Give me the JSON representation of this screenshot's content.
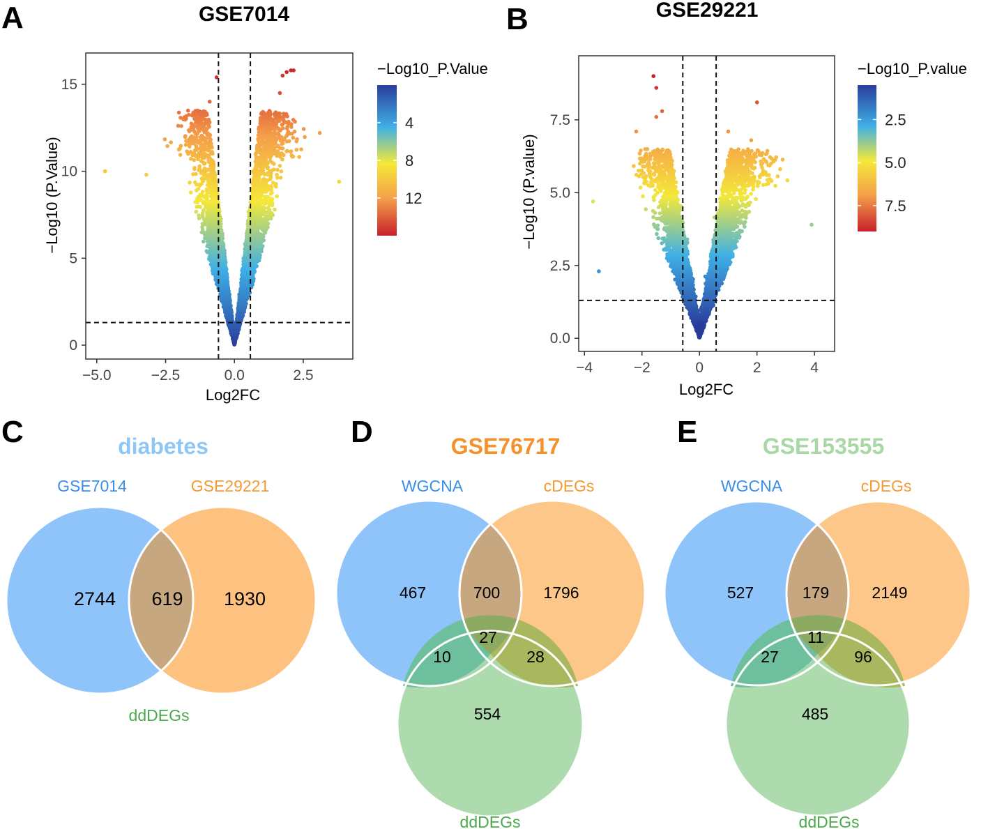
{
  "panels": {
    "a": {
      "letter": "A"
    },
    "b": {
      "letter": "B"
    },
    "c": {
      "letter": "C"
    },
    "d": {
      "letter": "D"
    },
    "e": {
      "letter": "E"
    }
  },
  "colors": {
    "scale_low": "#2b3d9b",
    "scale_mid_blue": "#3fb0e6",
    "scale_yellow": "#f5e838",
    "scale_orange": "#f5a04a",
    "scale_high": "#c8202b",
    "venn_blue": "#8fc4fb",
    "venn_orange": "#fdc27f",
    "venn_green": "#a6d8a6",
    "blue_label": "#3a8fe8",
    "orange_label": "#f59a32",
    "green_label": "#4aaa4a",
    "title_diabetes": "#8ec6f5",
    "title_gse76717": "#f5902a",
    "title_gse153555": "#a8d8a6"
  },
  "chart_data": [
    {
      "panel": "A",
      "type": "scatter",
      "subtype": "volcano",
      "title": "GSE7014",
      "xlabel": "Log2FC",
      "ylabel": "−Log10 (P.Value)",
      "xlim": [
        -5.4,
        4.3
      ],
      "ylim": [
        -0.8,
        16.8
      ],
      "xticks": [
        -5.0,
        -2.5,
        0.0,
        2.5
      ],
      "xtick_labels": [
        "−5.0",
        "−2.5",
        "0.0",
        "2.5"
      ],
      "yticks": [
        0,
        5,
        10,
        15
      ],
      "ytick_labels": [
        "0",
        "5",
        "10",
        "15"
      ],
      "vlines": [
        -0.58,
        0.58
      ],
      "hline": 1.3,
      "legend": {
        "title": "−Log10_P.Value",
        "ticks": [
          4,
          8,
          12
        ],
        "tick_labels": [
          "4",
          "8",
          "12"
        ],
        "range": [
          0,
          16
        ],
        "reversed": true
      },
      "grid": false,
      "highlight_points": [
        {
          "x": -4.7,
          "y": 10.0
        },
        {
          "x": -0.65,
          "y": 15.4
        },
        {
          "x": -0.9,
          "y": 14.0
        },
        {
          "x": 1.75,
          "y": 15.5
        },
        {
          "x": 1.9,
          "y": 15.7
        },
        {
          "x": 2.05,
          "y": 15.8
        },
        {
          "x": 2.15,
          "y": 15.8
        },
        {
          "x": 1.65,
          "y": 14.5
        },
        {
          "x": 3.8,
          "y": 9.4
        },
        {
          "x": 3.1,
          "y": 12.2
        },
        {
          "x": -1.5,
          "y": 12.4
        },
        {
          "x": -3.2,
          "y": 9.8
        }
      ]
    },
    {
      "panel": "B",
      "type": "scatter",
      "subtype": "volcano",
      "title": "GSE29221",
      "xlabel": "Log2FC",
      "ylabel": "−Log10 (P.value)",
      "xlim": [
        -4.2,
        4.7
      ],
      "ylim": [
        -0.45,
        9.7
      ],
      "xticks": [
        -4,
        -2,
        0,
        2,
        4
      ],
      "xtick_labels": [
        "−4",
        "−2",
        "0",
        "2",
        "4"
      ],
      "yticks": [
        0.0,
        2.5,
        5.0,
        7.5
      ],
      "ytick_labels": [
        "0.0",
        "2.5",
        "5.0",
        "7.5"
      ],
      "vlines": [
        -0.58,
        0.58
      ],
      "hline": 1.3,
      "legend": {
        "title": "−Log10_P.value",
        "ticks": [
          2.5,
          5.0,
          7.5
        ],
        "tick_labels": [
          "2.5",
          "5.0",
          "7.5"
        ],
        "range": [
          0.5,
          9
        ],
        "reversed": true
      },
      "grid": false,
      "highlight_points": [
        {
          "x": -1.6,
          "y": 9.0
        },
        {
          "x": -1.5,
          "y": 8.6
        },
        {
          "x": -1.3,
          "y": 7.8
        },
        {
          "x": -1.5,
          "y": 7.6
        },
        {
          "x": 2.0,
          "y": 8.1
        },
        {
          "x": 1.8,
          "y": 6.8
        },
        {
          "x": 1.0,
          "y": 7.1
        },
        {
          "x": 2.3,
          "y": 5.7
        },
        {
          "x": -3.7,
          "y": 4.7
        },
        {
          "x": -3.5,
          "y": 2.3
        },
        {
          "x": 3.9,
          "y": 3.9
        },
        {
          "x": -2.2,
          "y": 7.1
        }
      ]
    },
    {
      "panel": "C",
      "type": "venn",
      "title": "diabetes",
      "sets": [
        "GSE7014",
        "GSE29221"
      ],
      "regions": {
        "only_1": 2744,
        "only_2": 1930,
        "both": 619
      },
      "footer_label": "ddDEGs"
    },
    {
      "panel": "D",
      "type": "venn",
      "title": "GSE76717",
      "sets": [
        "WGCNA",
        "cDEGs",
        "ddDEGs"
      ],
      "regions": {
        "only_1": 467,
        "only_2": 1796,
        "only_3": 554,
        "s12": 700,
        "s13": 10,
        "s23": 28,
        "all": 27
      }
    },
    {
      "panel": "E",
      "type": "venn",
      "title": "GSE153555",
      "sets": [
        "WGCNA",
        "cDEGs",
        "ddDEGs"
      ],
      "regions": {
        "only_1": 527,
        "only_2": 2149,
        "only_3": 485,
        "s12": 179,
        "s13": 27,
        "s23": 96,
        "all": 11
      }
    }
  ]
}
